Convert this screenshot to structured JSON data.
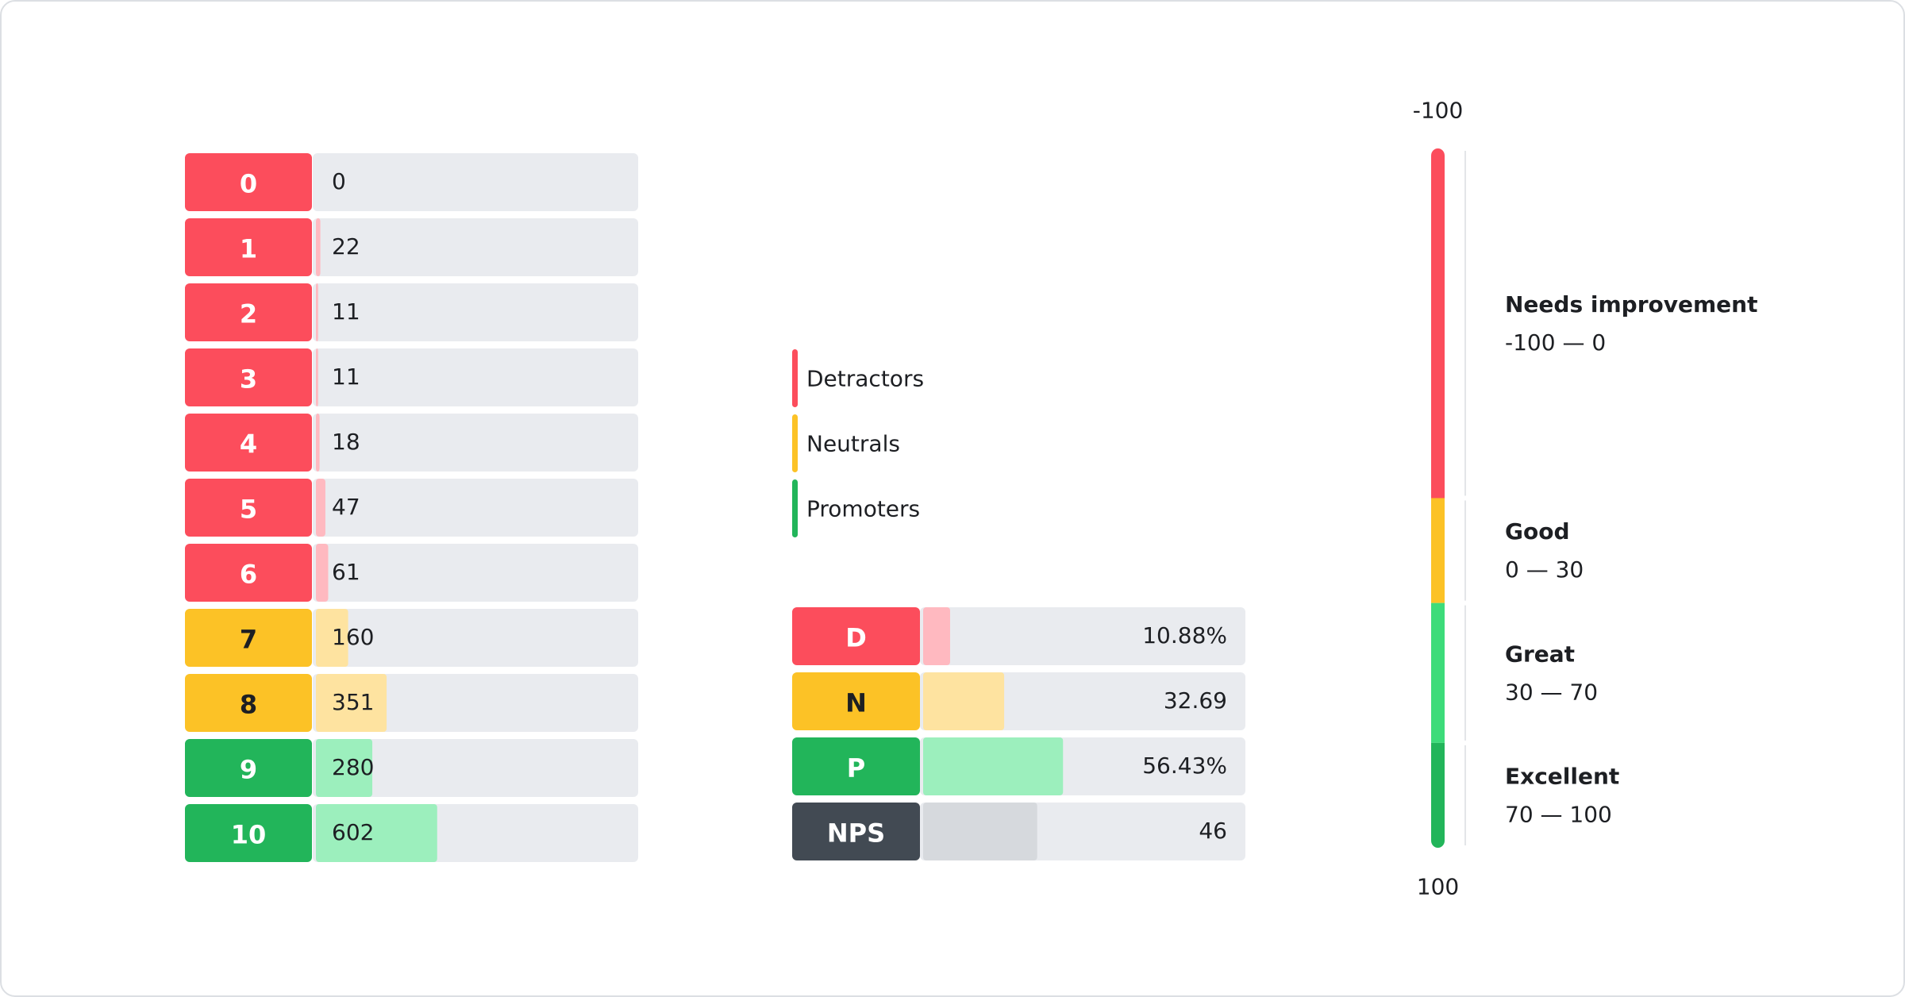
{
  "chart_data": [
    {
      "type": "bar",
      "orientation": "horizontal",
      "categories": [
        "0",
        "1",
        "2",
        "3",
        "4",
        "5",
        "6",
        "7",
        "8",
        "9",
        "10"
      ],
      "values": [
        0,
        22,
        11,
        11,
        18,
        47,
        61,
        160,
        351,
        280,
        602
      ],
      "colors": [
        "#fc4d5c",
        "#fc4d5c",
        "#fc4d5c",
        "#fc4d5c",
        "#fc4d5c",
        "#fc4d5c",
        "#fc4d5c",
        "#fcc226",
        "#fcc226",
        "#22b55a",
        "#22b55a"
      ],
      "bar_colors": [
        "#ffb9c0",
        "#ffb9c0",
        "#ffb9c0",
        "#ffb9c0",
        "#ffb9c0",
        "#ffb9c0",
        "#ffb9c0",
        "#fee3a0",
        "#fee3a0",
        "#9cefbd",
        "#9cefbd"
      ],
      "label_text_colors": [
        "#ffffff",
        "#ffffff",
        "#ffffff",
        "#ffffff",
        "#ffffff",
        "#ffffff",
        "#ffffff",
        "#1d1f23",
        "#1d1f23",
        "#ffffff",
        "#ffffff"
      ],
      "track_color": "#e9ebef",
      "xlim": [
        0,
        1600
      ]
    },
    {
      "type": "bar",
      "orientation": "horizontal",
      "legend": [
        {
          "name": "Detractors",
          "color": "#fc4d5c"
        },
        {
          "name": "Neutrals",
          "color": "#fcc226"
        },
        {
          "name": "Promoters",
          "color": "#22b55a"
        }
      ],
      "categories": [
        "D",
        "N",
        "P",
        "NPS"
      ],
      "values": [
        10.88,
        32.69,
        56.43,
        46
      ],
      "value_labels": [
        "10.88%",
        "32.69",
        "56.43%",
        "46"
      ],
      "colors": [
        "#fc4d5c",
        "#fcc226",
        "#22b55a",
        "#424a53"
      ],
      "bar_colors": [
        "#ffb9c0",
        "#fee3a0",
        "#9cefbd",
        "#d6d9dd"
      ],
      "label_text_colors": [
        "#ffffff",
        "#1d1f23",
        "#ffffff",
        "#ffffff"
      ],
      "track_color": "#e9ebef",
      "xlim": [
        0,
        130
      ]
    },
    {
      "type": "scale",
      "ylim": [
        -100,
        100
      ],
      "yticks": [
        -100,
        100
      ],
      "bands": [
        {
          "name": "Needs improvement",
          "label": "-100 — 0",
          "from": -100,
          "to": 0,
          "color": "#fc4d5c"
        },
        {
          "name": "Good",
          "label": "0 — 30",
          "from": 0,
          "to": 30,
          "color": "#fcc226"
        },
        {
          "name": "Great",
          "label": "30 — 70",
          "from": 30,
          "to": 70,
          "color": "#3ddc7a"
        },
        {
          "name": "Excellent",
          "label": "70 — 100",
          "from": 70,
          "to": 100,
          "color": "#22b55a"
        }
      ]
    }
  ]
}
